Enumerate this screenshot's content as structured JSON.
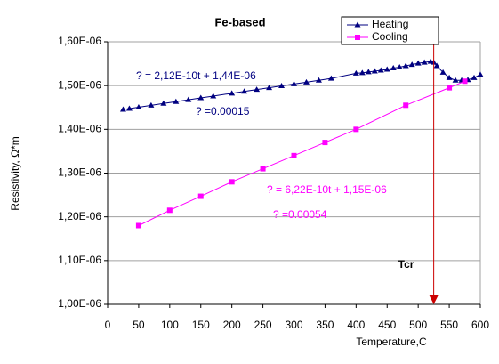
{
  "chart_data": {
    "type": "line",
    "title": "Fe-based",
    "x_label": "Temperature,C",
    "y_label": "Resistivity, Ω*m",
    "xlim": [
      0,
      600
    ],
    "xticks": [
      0,
      50,
      100,
      150,
      200,
      250,
      300,
      350,
      400,
      450,
      500,
      550,
      600
    ],
    "ylim": [
      1e-06,
      1.6e-06
    ],
    "yticks": [
      {
        "value": 1e-06,
        "label": "1,00E-06"
      },
      {
        "value": 1.1e-06,
        "label": "1,10E-06"
      },
      {
        "value": 1.2e-06,
        "label": "1,20E-06"
      },
      {
        "value": 1.3e-06,
        "label": "1,30E-06"
      },
      {
        "value": 1.4e-06,
        "label": "1,40E-06"
      },
      {
        "value": 1.5e-06,
        "label": "1,50E-06"
      },
      {
        "value": 1.6e-06,
        "label": "1,60E-06"
      }
    ],
    "grid": true,
    "legend": "top-right",
    "series": [
      {
        "name": "Heating",
        "color": "#000080",
        "marker": "triangle",
        "x": [
          25,
          35,
          50,
          70,
          90,
          110,
          130,
          150,
          170,
          200,
          220,
          240,
          260,
          280,
          300,
          320,
          340,
          360,
          400,
          410,
          420,
          430,
          440,
          450,
          460,
          470,
          480,
          490,
          500,
          510,
          520,
          525,
          530,
          540,
          550,
          560,
          570,
          580,
          590,
          600
        ],
        "values": [
          1.4453e-06,
          1.4474e-06,
          1.4506e-06,
          1.4548e-06,
          1.4591e-06,
          1.4633e-06,
          1.4676e-06,
          1.4718e-06,
          1.476e-06,
          1.4824e-06,
          1.4866e-06,
          1.4909e-06,
          1.4951e-06,
          1.4994e-06,
          1.5036e-06,
          1.5078e-06,
          1.5121e-06,
          1.5163e-06,
          1.528e-06,
          1.529e-06,
          1.531e-06,
          1.533e-06,
          1.535e-06,
          1.537e-06,
          1.54e-06,
          1.542e-06,
          1.545e-06,
          1.548e-06,
          1.551e-06,
          1.553e-06,
          1.555e-06,
          1.553e-06,
          1.545e-06,
          1.53e-06,
          1.518e-06,
          1.512e-06,
          1.512e-06,
          1.513e-06,
          1.518e-06,
          1.525e-06
        ]
      },
      {
        "name": "Cooling",
        "color": "#ff00ff",
        "marker": "square",
        "x": [
          50,
          100,
          150,
          200,
          250,
          300,
          350,
          400,
          480,
          550,
          575
        ],
        "values": [
          1.18e-06,
          1.215e-06,
          1.247e-06,
          1.28e-06,
          1.31e-06,
          1.34e-06,
          1.37e-06,
          1.4e-06,
          1.455e-06,
          1.495e-06,
          1.51e-06
        ]
      }
    ],
    "annotations": [
      {
        "text": "? = 2,12E-10t + 1,44E-06",
        "color": "#000080"
      },
      {
        "text": "? =0.00015",
        "color": "#000080"
      },
      {
        "text": "? = 6,22E-10t + 1,15E-06",
        "color": "#ff00ff"
      },
      {
        "text": "? =0.00054",
        "color": "#ff00ff"
      },
      {
        "text": "Tcr",
        "color": "#000000",
        "x": 525,
        "arrow_color": "#cc0000"
      }
    ]
  }
}
